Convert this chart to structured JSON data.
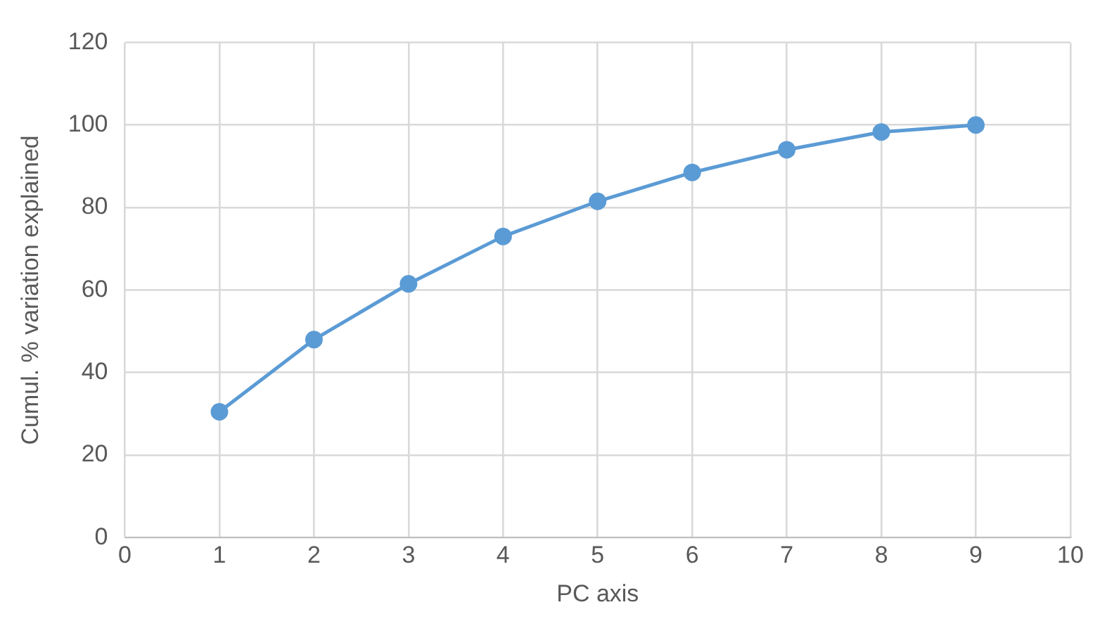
{
  "chart_data": {
    "type": "line",
    "xlabel": "PC axis",
    "ylabel": "Cumul. % variation explained",
    "x": [
      1,
      2,
      3,
      4,
      5,
      6,
      7,
      8,
      9
    ],
    "series": [
      {
        "color": "#5b9bd5",
        "values": [
          30.5,
          48,
          61.5,
          73,
          81.5,
          88.5,
          94,
          98.3,
          100
        ]
      }
    ],
    "xlim": [
      0,
      10
    ],
    "xticks": [
      0,
      1,
      2,
      3,
      4,
      5,
      6,
      7,
      8,
      9,
      10
    ],
    "ylim": [
      0,
      120
    ],
    "yticks": [
      0,
      20,
      40,
      60,
      80,
      100,
      120
    ],
    "grid": true,
    "legend": false,
    "marker": "circle",
    "line_style": "solid"
  }
}
